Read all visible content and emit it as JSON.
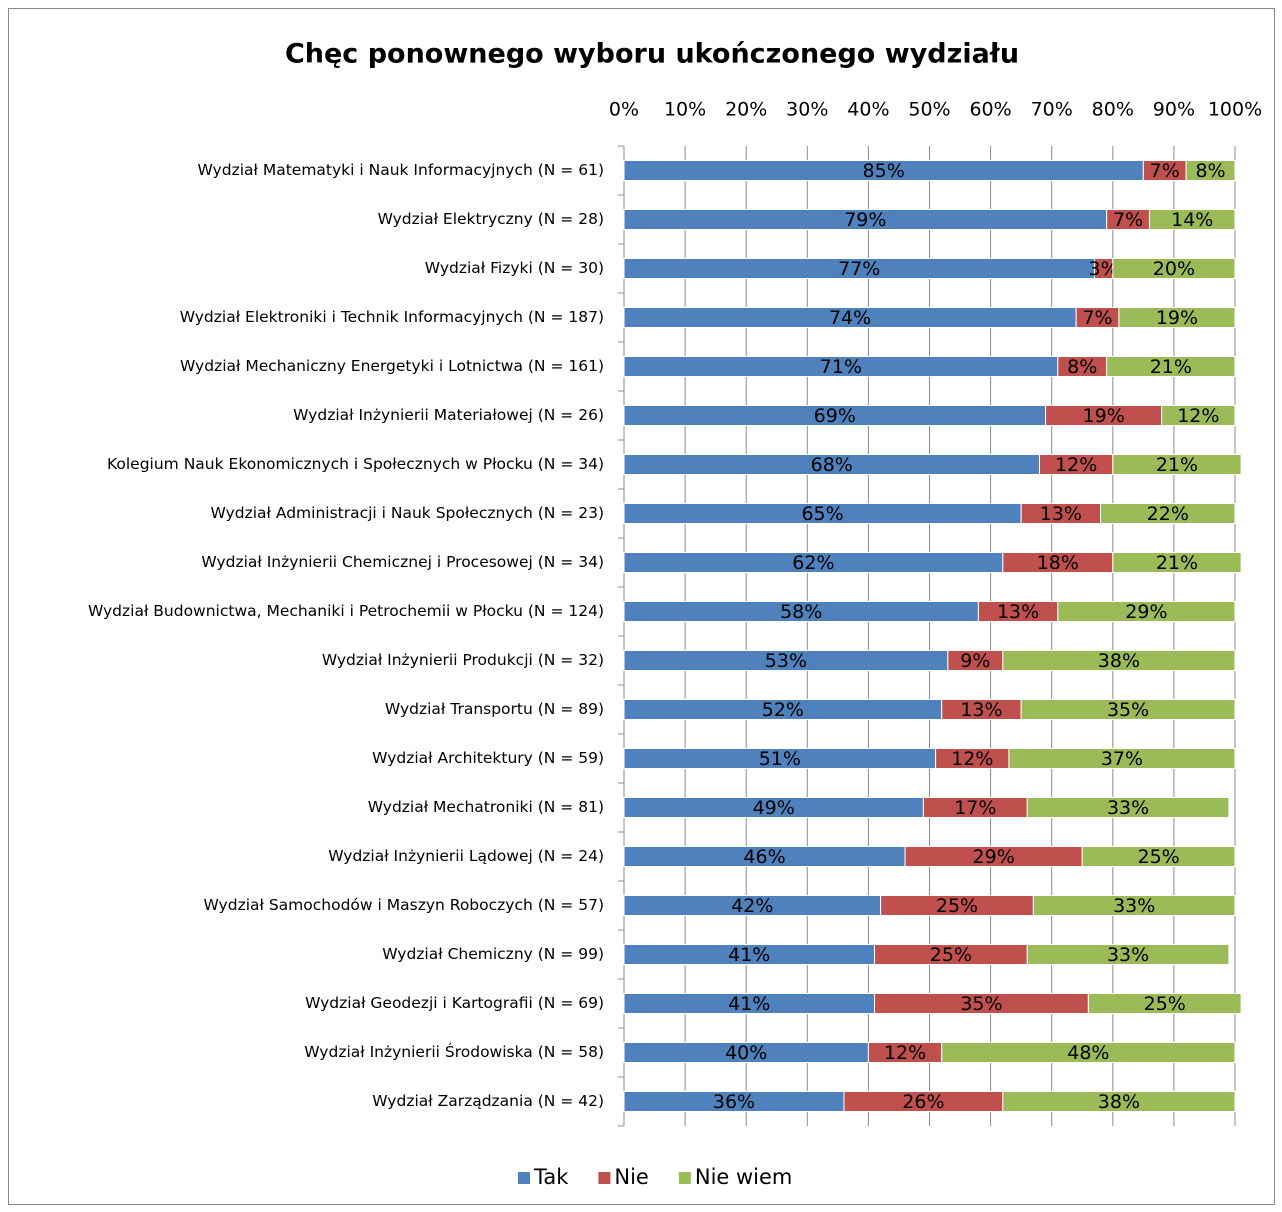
{
  "chart_data": {
    "type": "stacked_barh",
    "title": "Chęc ponownego wyboru ukończonego wydziału",
    "categories": [
      "Wydział Matematyki i Nauk Informacyjnych (N = 61)",
      "Wydział Elektryczny (N = 28)",
      "Wydział Fizyki (N = 30)",
      "Wydział Elektroniki i Technik Informacyjnych (N = 187)",
      "Wydział Mechaniczny Energetyki i Lotnictwa (N = 161)",
      "Wydział Inżynierii Materiałowej (N = 26)",
      "Kolegium Nauk Ekonomicznych i Społecznych w Płocku (N = 34)",
      "Wydział Administracji i Nauk Społecznych (N = 23)",
      "Wydział Inżynierii Chemicznej i Procesowej (N = 34)",
      "Wydział Budownictwa, Mechaniki i Petrochemii w Płocku (N = 124)",
      "Wydział Inżynierii Produkcji (N = 32)",
      "Wydział Transportu (N = 89)",
      "Wydział Architektury (N = 59)",
      "Wydział Mechatroniki (N = 81)",
      "Wydział Inżynierii Lądowej (N = 24)",
      "Wydział Samochodów i Maszyn Roboczych (N = 57)",
      "Wydział Chemiczny (N = 99)",
      "Wydział Geodezji i Kartografii (N = 69)",
      "Wydział Inżynierii Środowiska (N = 58)",
      "Wydział Zarządzania (N = 42)"
    ],
    "series": [
      {
        "name": "Tak",
        "color": "#4f81bd",
        "values": [
          85,
          79,
          77,
          74,
          71,
          69,
          68,
          65,
          62,
          58,
          53,
          52,
          51,
          49,
          46,
          42,
          41,
          41,
          40,
          36
        ],
        "value_labels": [
          "85%",
          "79%",
          "77%",
          "74%",
          "71%",
          "69%",
          "68%",
          "65%",
          "62%",
          "58%",
          "53%",
          "52%",
          "51%",
          "49%",
          "46%",
          "42%",
          "41%",
          "41%",
          "40%",
          "36%"
        ]
      },
      {
        "name": "Nie",
        "color": "#c0504d",
        "values": [
          7,
          7,
          3,
          7,
          8,
          19,
          12,
          13,
          18,
          13,
          9,
          13,
          12,
          17,
          29,
          25,
          25,
          35,
          12,
          26
        ],
        "value_labels": [
          "7%",
          "7%",
          "3%",
          "7%",
          "8%",
          "19%",
          "12%",
          "13%",
          "18%",
          "13%",
          "9%",
          "13%",
          "12%",
          "17%",
          "29%",
          "25%",
          "25%",
          "35%",
          "12%",
          "26%"
        ]
      },
      {
        "name": "Nie wiem",
        "color": "#9bbb59",
        "values": [
          8,
          14,
          20,
          19,
          21,
          12,
          21,
          22,
          21,
          29,
          38,
          35,
          37,
          33,
          25,
          33,
          33,
          25,
          48,
          38
        ],
        "value_labels": [
          "8%",
          "14%",
          "20%",
          "19%",
          "21%",
          "12%",
          "21%",
          "22%",
          "21%",
          "29%",
          "38%",
          "35%",
          "37%",
          "33%",
          "25%",
          "33%",
          "33%",
          "25%",
          "48%",
          "38%"
        ]
      }
    ],
    "xlim": [
      0,
      100
    ],
    "xticks": [
      {
        "value": 0,
        "label": "0%"
      },
      {
        "value": 10,
        "label": "10%"
      },
      {
        "value": 20,
        "label": "20%"
      },
      {
        "value": 30,
        "label": "30%"
      },
      {
        "value": 40,
        "label": "40%"
      },
      {
        "value": 50,
        "label": "50%"
      },
      {
        "value": 60,
        "label": "60%"
      },
      {
        "value": 70,
        "label": "70%"
      },
      {
        "value": 80,
        "label": "80%"
      },
      {
        "value": 90,
        "label": "90%"
      },
      {
        "value": 100,
        "label": "100%"
      }
    ],
    "grid": true,
    "legend": "bottom"
  }
}
